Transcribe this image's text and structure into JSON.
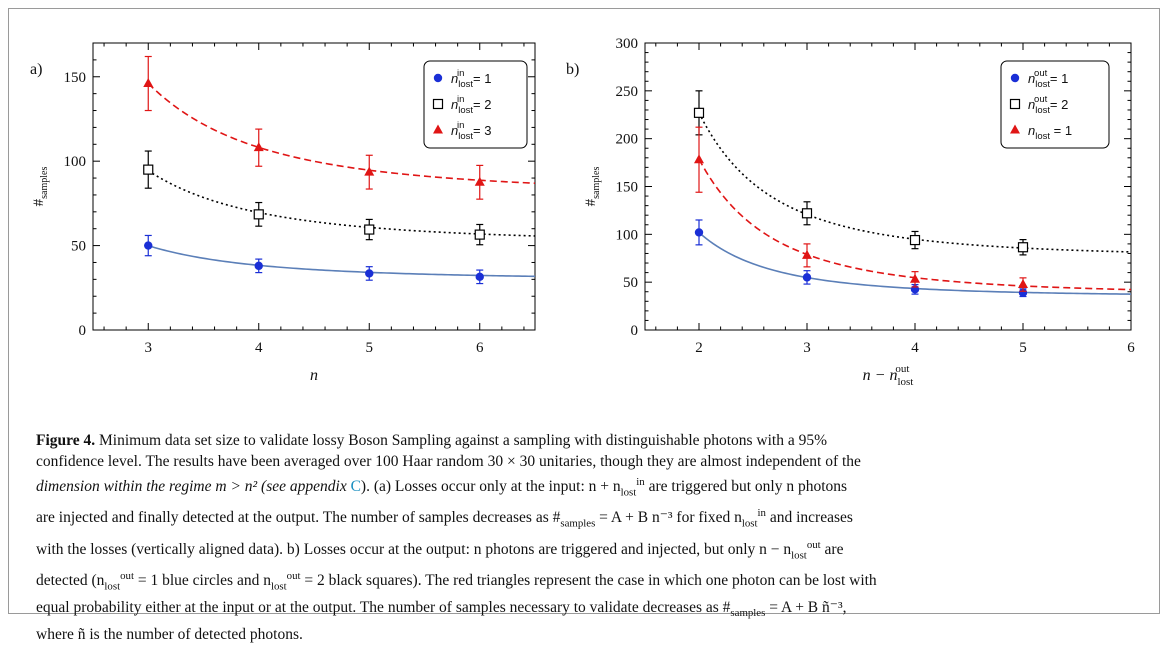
{
  "panel_labels": {
    "a": "a)",
    "b": "b)"
  },
  "chart_data": [
    {
      "type": "scatter",
      "panel": "a)",
      "xlabel": "n",
      "ylabel": "#samples",
      "xlim": [
        2.5,
        6.5
      ],
      "ylim": [
        0,
        170
      ],
      "xticks": [
        3,
        4,
        5,
        6
      ],
      "yticks": [
        0,
        50,
        100,
        150
      ],
      "legend_position": "top-right",
      "series": [
        {
          "name": "n_lost^in = 1",
          "label_sup": "in",
          "label_rhs": " = 1",
          "marker": "circle",
          "color": "#1a2fd6",
          "fit_color": "#5b7fb8",
          "fit_style": "solid",
          "x": [
            3,
            4,
            5,
            6
          ],
          "y": [
            50,
            38,
            33.5,
            31.5
          ],
          "err": [
            6,
            4,
            4,
            4
          ],
          "fit": {
            "A": 29.8,
            "B": 544
          }
        },
        {
          "name": "n_lost^in = 2",
          "label_sup": "in",
          "label_rhs": " = 2",
          "marker": "square",
          "color": "#000000",
          "fit_color": "#000000",
          "fit_style": "dotted",
          "x": [
            3,
            4,
            5,
            6
          ],
          "y": [
            95,
            68.5,
            59.5,
            56.5
          ],
          "err": [
            11,
            7,
            6,
            6
          ],
          "fit": {
            "A": 51.5,
            "B": 1157
          }
        },
        {
          "name": "n_lost^in = 3",
          "label_sup": "in",
          "label_rhs": " = 3",
          "marker": "triangle",
          "color": "#e01515",
          "fit_color": "#e01515",
          "fit_style": "dashed",
          "x": [
            3,
            4,
            5,
            6
          ],
          "y": [
            146,
            108,
            93.5,
            87.5
          ],
          "err": [
            16,
            11,
            10,
            10
          ],
          "fit": {
            "A": 80.5,
            "B": 1771
          }
        }
      ]
    },
    {
      "type": "scatter",
      "panel": "b)",
      "xlabel": "n − n_lost^out",
      "ylabel": "#samples",
      "xlim": [
        1.5,
        6
      ],
      "ylim": [
        0,
        300
      ],
      "xticks": [
        2,
        3,
        4,
        5,
        6
      ],
      "yticks": [
        0,
        50,
        100,
        150,
        200,
        250,
        300
      ],
      "legend_position": "top-right",
      "series": [
        {
          "name": "n_lost^out = 1",
          "label_sup": "out",
          "label_rhs": " = 1",
          "marker": "circle",
          "color": "#1a2fd6",
          "fit_color": "#5b7fb8",
          "fit_style": "solid",
          "x": [
            2,
            3,
            4,
            5
          ],
          "y": [
            102,
            55,
            42.5,
            39
          ],
          "err": [
            13,
            7,
            5,
            4
          ],
          "fit": {
            "A": 35,
            "B": 535
          }
        },
        {
          "name": "n_lost^out = 2",
          "label_sup": "out",
          "label_rhs": " = 2",
          "marker": "square",
          "color": "#000000",
          "fit_color": "#000000",
          "fit_style": "dotted",
          "x": [
            2,
            3,
            4,
            5
          ],
          "y": [
            227,
            122,
            94,
            86.5
          ],
          "err": [
            23,
            12,
            9,
            8
          ],
          "fit": {
            "A": 76,
            "B": 1208
          }
        },
        {
          "name": "n_lost = 1",
          "label_sup": "",
          "label_rhs": " = 1",
          "marker": "triangle",
          "color": "#e01515",
          "fit_color": "#e01515",
          "fit_style": "dashed",
          "x": [
            2,
            3,
            4,
            5
          ],
          "y": [
            178,
            78,
            53,
            47.5
          ],
          "err": [
            34,
            12,
            8,
            7
          ],
          "fit": {
            "A": 37,
            "B": 1133
          }
        }
      ]
    }
  ],
  "caption": {
    "figure_label": "Figure 4.",
    "line1": " Minimum data set size to validate lossy Boson Sampling against a sampling with distinguishable photons with a 95%",
    "line2": "confidence level. The results have been averaged over 100 Haar random 30 × 30 unitaries, though they are almost independent of the",
    "line3a": "dimension within the regime m > n² (see appendix ",
    "line3_link": "C",
    "line3b": "). (a) Losses occur only at the input: n + n",
    "line3c": " are triggered but only n photons",
    "line4a": "are injected and finally detected at the output. The number of samples decreases as #",
    "line4b": " = A + B n⁻³ for fixed n",
    "line4c": " and increases",
    "line5": "with the losses (vertically aligned data). b) Losses occur at the output: n photons are triggered and injected, but only n − n",
    "line5b": " are",
    "line6a": "detected (n",
    "line6b": " = 1 blue circles and n",
    "line6c": " = 2 black squares). The red triangles represent the case in which one photon can be lost with",
    "line7a": "equal probability either at the input or at the output. The number of samples necessary to validate decreases as #",
    "line7b": " = A + B ñ⁻³,",
    "line8": "where ñ is the number of detected photons.",
    "sub_lost": "lost",
    "sup_in": "in",
    "sup_out": "out",
    "sub_samples": "samples"
  }
}
